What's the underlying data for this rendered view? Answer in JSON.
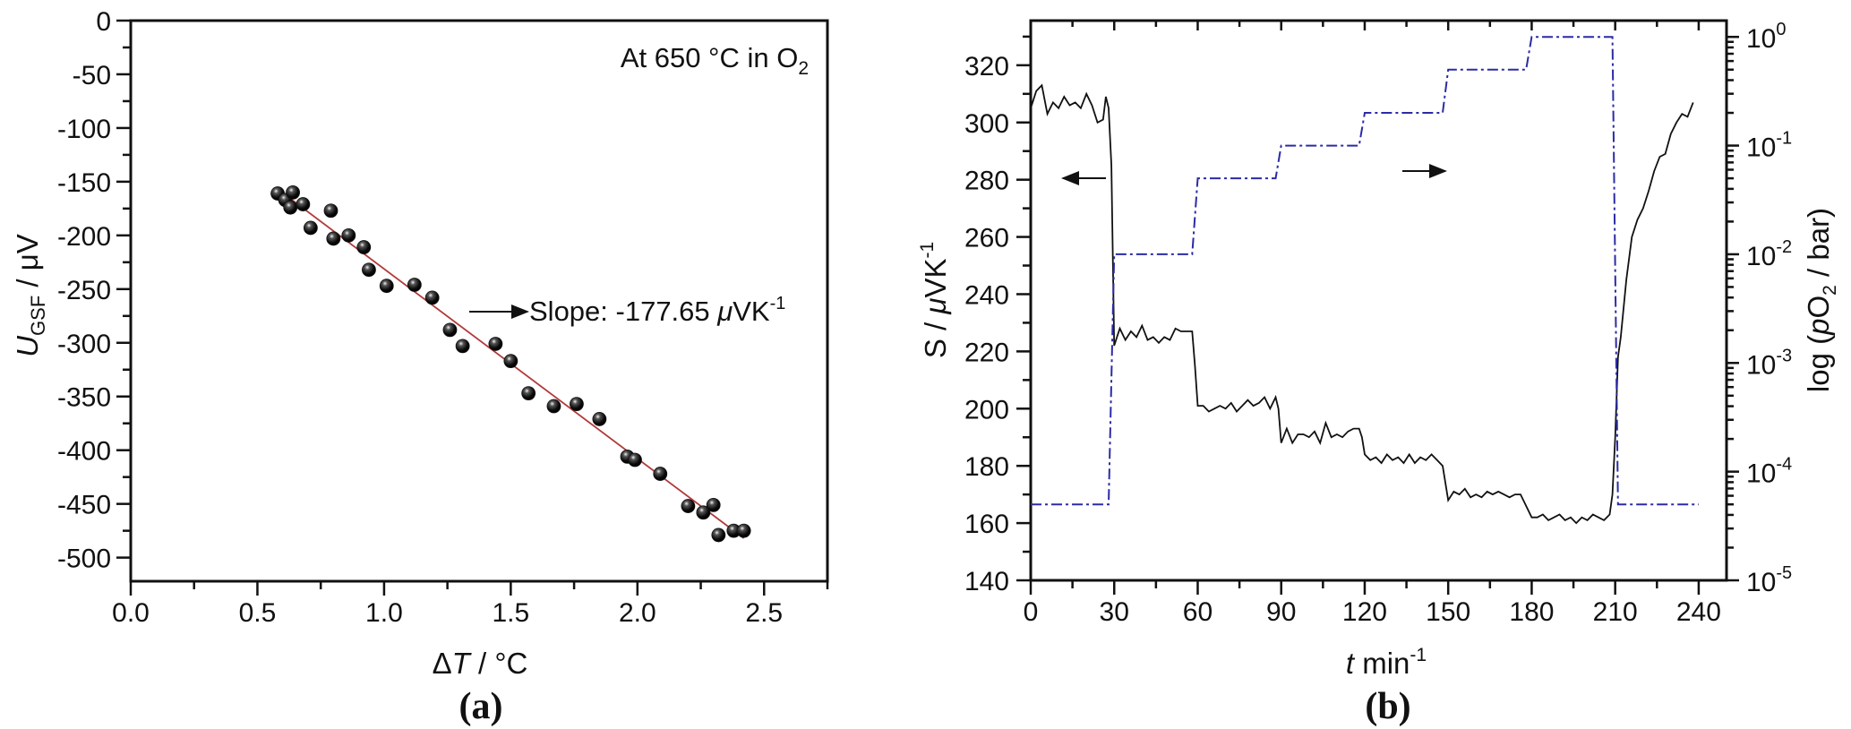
{
  "chart_data": [
    {
      "panel": "(a)",
      "type": "scatter",
      "xlabel": {
        "delta": "Δ",
        "var": "T",
        "unit": " / °C"
      },
      "ylabel": {
        "var": "U",
        "sub": "GSF",
        "unit": " / μV"
      },
      "xlim": [
        0,
        2.75
      ],
      "ylim": [
        -522,
        0
      ],
      "xticks": [
        0.0,
        0.5,
        1.0,
        1.5,
        2.0,
        2.5
      ],
      "xtick_labels": [
        "0.0",
        "0.5",
        "1.0",
        "1.5",
        "2.0",
        "2.5"
      ],
      "yticks": [
        0,
        -50,
        -100,
        -150,
        -200,
        -250,
        -300,
        -350,
        -400,
        -450,
        -500
      ],
      "ytick_labels": [
        "0",
        "-50",
        "-100",
        "-150",
        "-200",
        "-250",
        "-300",
        "-350",
        "-400",
        "-450",
        "-500"
      ],
      "annotation": {
        "text": "At 650 °C in O",
        "sub": "2"
      },
      "slope_label": {
        "prefix": "Slope: -177.65 ",
        "mu": "μ",
        "unit": "VK",
        "sup": "-1"
      },
      "points": [
        [
          0.58,
          -161
        ],
        [
          0.61,
          -167
        ],
        [
          0.64,
          -160
        ],
        [
          0.63,
          -174
        ],
        [
          0.68,
          -171
        ],
        [
          0.71,
          -193
        ],
        [
          0.79,
          -177
        ],
        [
          0.8,
          -203
        ],
        [
          0.86,
          -200
        ],
        [
          0.92,
          -211
        ],
        [
          0.94,
          -232
        ],
        [
          1.01,
          -247
        ],
        [
          1.12,
          -246
        ],
        [
          1.19,
          -258
        ],
        [
          1.26,
          -288
        ],
        [
          1.31,
          -303
        ],
        [
          1.44,
          -301
        ],
        [
          1.5,
          -317
        ],
        [
          1.57,
          -347
        ],
        [
          1.67,
          -359
        ],
        [
          1.76,
          -357
        ],
        [
          1.85,
          -371
        ],
        [
          1.96,
          -406
        ],
        [
          1.99,
          -409
        ],
        [
          2.09,
          -422
        ],
        [
          2.2,
          -452
        ],
        [
          2.26,
          -458
        ],
        [
          2.3,
          -451
        ],
        [
          2.32,
          -479
        ],
        [
          2.38,
          -475
        ],
        [
          2.42,
          -475
        ]
      ],
      "fit_line": {
        "x": [
          0.58,
          2.42
        ],
        "y": [
          -157,
          -482
        ],
        "color": "#b23a3a"
      },
      "marker_color": "#111111"
    },
    {
      "panel": "(b)",
      "type": "line",
      "xlabel": {
        "var": "t",
        "unit": " min",
        "sup": "-1"
      },
      "ylabel": {
        "text": "S / ",
        "mu": "μ",
        "unit": "VK",
        "sup": "-1"
      },
      "ylabel_right": {
        "pre": "log (",
        "var": "p",
        "o": "O",
        "sub": "2",
        "post": " / bar)"
      },
      "xlim": [
        0,
        250
      ],
      "ylim": [
        140,
        335.6
      ],
      "ylim_right_log10": [
        -5,
        0.15
      ],
      "xticks": [
        0,
        30,
        60,
        90,
        120,
        150,
        180,
        210,
        240
      ],
      "xtick_labels": [
        "0",
        "30",
        "60",
        "90",
        "120",
        "150",
        "180",
        "210",
        "240"
      ],
      "yticks": [
        140,
        160,
        180,
        200,
        220,
        240,
        260,
        280,
        300,
        320
      ],
      "ytick_labels": [
        "140",
        "160",
        "180",
        "200",
        "220",
        "240",
        "260",
        "280",
        "300",
        "320"
      ],
      "right_ticks": [
        {
          "value": 0,
          "base": "10",
          "exp": "0"
        },
        {
          "value": -1,
          "base": "10",
          "exp": "-1"
        },
        {
          "value": -2,
          "base": "10",
          "exp": "-2"
        },
        {
          "value": -3,
          "base": "10",
          "exp": "-3"
        },
        {
          "value": -4,
          "base": "10",
          "exp": "-4"
        },
        {
          "value": -5,
          "base": "10",
          "exp": "-5"
        }
      ],
      "series": [
        {
          "name": "S",
          "axis": "left",
          "color": "#111111",
          "style": "solid",
          "points": [
            [
              0,
              305
            ],
            [
              2,
              311
            ],
            [
              4,
              313
            ],
            [
              6,
              303
            ],
            [
              8,
              307
            ],
            [
              10,
              305
            ],
            [
              12,
              309
            ],
            [
              14,
              306
            ],
            [
              16,
              307
            ],
            [
              18,
              305
            ],
            [
              20,
              310
            ],
            [
              22,
              306
            ],
            [
              24,
              300
            ],
            [
              26,
              301
            ],
            [
              27,
              309
            ],
            [
              28,
              305
            ],
            [
              29,
              285
            ],
            [
              30,
              222
            ],
            [
              31,
              225
            ],
            [
              32,
              228
            ],
            [
              34,
              224
            ],
            [
              36,
              227
            ],
            [
              38,
              225
            ],
            [
              40,
              229
            ],
            [
              42,
              224
            ],
            [
              44,
              225
            ],
            [
              46,
              223
            ],
            [
              48,
              225
            ],
            [
              50,
              224
            ],
            [
              52,
              228
            ],
            [
              54,
              227
            ],
            [
              56,
              227
            ],
            [
              58,
              227
            ],
            [
              59,
              215
            ],
            [
              60,
              201
            ],
            [
              62,
              201
            ],
            [
              64,
              199
            ],
            [
              66,
              200
            ],
            [
              68,
              201
            ],
            [
              70,
              200
            ],
            [
              72,
              202
            ],
            [
              74,
              199
            ],
            [
              76,
              201
            ],
            [
              78,
              203
            ],
            [
              80,
              201
            ],
            [
              82,
              202
            ],
            [
              84,
              204
            ],
            [
              86,
              200
            ],
            [
              88,
              204
            ],
            [
              89,
              200
            ],
            [
              90,
              188
            ],
            [
              92,
              193
            ],
            [
              94,
              188
            ],
            [
              96,
              191
            ],
            [
              98,
              191
            ],
            [
              100,
              190
            ],
            [
              102,
              192
            ],
            [
              104,
              188
            ],
            [
              106,
              195
            ],
            [
              108,
              190
            ],
            [
              110,
              191
            ],
            [
              112,
              190
            ],
            [
              114,
              192
            ],
            [
              116,
              193
            ],
            [
              118,
              193
            ],
            [
              119,
              190
            ],
            [
              120,
              184
            ],
            [
              122,
              182
            ],
            [
              124,
              183
            ],
            [
              126,
              181
            ],
            [
              128,
              184
            ],
            [
              130,
              182
            ],
            [
              132,
              183
            ],
            [
              134,
              181
            ],
            [
              136,
              184
            ],
            [
              138,
              181
            ],
            [
              140,
              183
            ],
            [
              142,
              182
            ],
            [
              144,
              184
            ],
            [
              146,
              182
            ],
            [
              148,
              180
            ],
            [
              150,
              168
            ],
            [
              152,
              171
            ],
            [
              154,
              170
            ],
            [
              156,
              172
            ],
            [
              158,
              169
            ],
            [
              160,
              170
            ],
            [
              162,
              169
            ],
            [
              164,
              171
            ],
            [
              166,
              170
            ],
            [
              168,
              171
            ],
            [
              170,
              170
            ],
            [
              172,
              169
            ],
            [
              174,
              170
            ],
            [
              176,
              170
            ],
            [
              178,
              166
            ],
            [
              180,
              162
            ],
            [
              182,
              162
            ],
            [
              184,
              163
            ],
            [
              186,
              161
            ],
            [
              188,
              162
            ],
            [
              190,
              163
            ],
            [
              192,
              161
            ],
            [
              194,
              162
            ],
            [
              196,
              160
            ],
            [
              198,
              162
            ],
            [
              200,
              161
            ],
            [
              202,
              163
            ],
            [
              204,
              162
            ],
            [
              206,
              161
            ],
            [
              208,
              163
            ],
            [
              209,
              170
            ],
            [
              210,
              190
            ],
            [
              211,
              218
            ],
            [
              212,
              225
            ],
            [
              214,
              245
            ],
            [
              216,
              260
            ],
            [
              218,
              266
            ],
            [
              220,
              270
            ],
            [
              222,
              276
            ],
            [
              224,
              283
            ],
            [
              226,
              288
            ],
            [
              228,
              289
            ],
            [
              230,
              296
            ],
            [
              232,
              300
            ],
            [
              234,
              303
            ],
            [
              236,
              302
            ],
            [
              238,
              307
            ]
          ]
        },
        {
          "name": "pO2",
          "axis": "right",
          "color": "#2b2ba6",
          "style": "dash-dot",
          "points": [
            [
              0,
              5e-05
            ],
            [
              28,
              5e-05
            ],
            [
              30,
              0.01
            ],
            [
              58,
              0.01
            ],
            [
              60,
              0.05
            ],
            [
              88,
              0.05
            ],
            [
              90,
              0.1
            ],
            [
              118,
              0.1
            ],
            [
              120,
              0.2
            ],
            [
              148,
              0.2
            ],
            [
              150,
              0.5
            ],
            [
              178,
              0.5
            ],
            [
              180,
              1
            ],
            [
              209,
              1
            ],
            [
              211,
              5e-05
            ],
            [
              240,
              5e-05
            ]
          ]
        }
      ],
      "arrows": [
        {
          "series": "S",
          "direction": "left",
          "at_t": 15,
          "at_S": 275
        },
        {
          "series": "pO2",
          "direction": "right",
          "at_t": 140,
          "at_S": 279
        }
      ]
    }
  ]
}
